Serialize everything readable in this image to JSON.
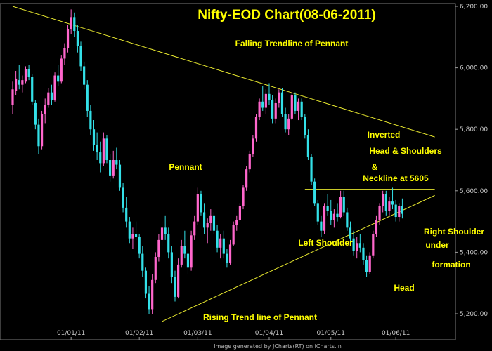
{
  "chart_data": {
    "type": "candlestick",
    "title": "Nifty-EOD Chart(08-06-2011)",
    "footer": "Image generated by JCharts(RT) on iCharts.in",
    "y_ticks": [
      "6,200.00",
      "6,000.00",
      "5,800.00",
      "5,600.00",
      "5,400.00",
      "5,200.00"
    ],
    "y_tick_values": [
      6200,
      6000,
      5800,
      5600,
      5400,
      5200
    ],
    "ylim": [
      5150,
      6200
    ],
    "x_ticks": [
      "01/01/11",
      "01/02/11",
      "01/03/11",
      "01/04/11",
      "01/05/11",
      "01/06/11"
    ],
    "x_tick_index": [
      18,
      39,
      57,
      79,
      98,
      118
    ],
    "colors": {
      "up": "#ff66cc",
      "down": "#33e0e8",
      "trendline": "#e6e62e",
      "annotation": "#ffff00"
    },
    "annotations": [
      "Falling Trendline of Pennant",
      "Pennant",
      "Inverted",
      "Head & Shoulders",
      "&",
      "Neckline at 5605",
      "Left Shoulder",
      "Right Shoulder",
      "under",
      "formation",
      "Head",
      "Rising Trend line of Pennant"
    ],
    "trendlines": [
      {
        "name": "Falling Trendline of Pennant",
        "from": {
          "i": 0,
          "v": 6200
        },
        "to": {
          "i": 130,
          "v": 5775
        }
      },
      {
        "name": "Rising Trend line of Pennant",
        "from": {
          "i": 46,
          "v": 5175
        },
        "to": {
          "i": 130,
          "v": 5585
        }
      },
      {
        "name": "Neckline at 5605",
        "from": {
          "i": 90,
          "v": 5605
        },
        "to": {
          "i": 130,
          "v": 5605
        }
      }
    ],
    "candles": [
      [
        5880,
        5955,
        5850,
        5930
      ],
      [
        5925,
        5990,
        5910,
        5965
      ],
      [
        5960,
        6010,
        5930,
        5945
      ],
      [
        5945,
        5975,
        5920,
        5960
      ],
      [
        5955,
        6005,
        5950,
        5995
      ],
      [
        5995,
        6010,
        5960,
        5970
      ],
      [
        5970,
        5980,
        5880,
        5890
      ],
      [
        5885,
        5895,
        5800,
        5815
      ],
      [
        5815,
        5835,
        5720,
        5745
      ],
      [
        5745,
        5860,
        5735,
        5850
      ],
      [
        5850,
        5900,
        5820,
        5880
      ],
      [
        5880,
        5935,
        5870,
        5920
      ],
      [
        5920,
        5945,
        5880,
        5895
      ],
      [
        5895,
        5985,
        5890,
        5975
      ],
      [
        5975,
        6010,
        5940,
        5955
      ],
      [
        5955,
        6040,
        5950,
        6030
      ],
      [
        6030,
        6080,
        6010,
        6065
      ],
      [
        6065,
        6140,
        6050,
        6125
      ],
      [
        6125,
        6190,
        6110,
        6165
      ],
      [
        6165,
        6180,
        6100,
        6120
      ],
      [
        6120,
        6140,
        6050,
        6070
      ],
      [
        6070,
        6085,
        5990,
        6005
      ],
      [
        6005,
        6020,
        5930,
        5945
      ],
      [
        5945,
        5960,
        5840,
        5860
      ],
      [
        5860,
        5880,
        5780,
        5800
      ],
      [
        5800,
        5830,
        5730,
        5750
      ],
      [
        5750,
        5790,
        5700,
        5725
      ],
      [
        5725,
        5760,
        5660,
        5690
      ],
      [
        5690,
        5790,
        5680,
        5770
      ],
      [
        5770,
        5780,
        5690,
        5700
      ],
      [
        5700,
        5720,
        5630,
        5650
      ],
      [
        5650,
        5730,
        5640,
        5700
      ],
      [
        5700,
        5740,
        5670,
        5685
      ],
      [
        5685,
        5700,
        5600,
        5610
      ],
      [
        5610,
        5625,
        5530,
        5545
      ],
      [
        5545,
        5580,
        5480,
        5500
      ],
      [
        5500,
        5515,
        5430,
        5445
      ],
      [
        5445,
        5480,
        5410,
        5460
      ],
      [
        5460,
        5500,
        5440,
        5450
      ],
      [
        5450,
        5460,
        5380,
        5395
      ],
      [
        5395,
        5420,
        5320,
        5340
      ],
      [
        5340,
        5350,
        5250,
        5265
      ],
      [
        5265,
        5290,
        5200,
        5215
      ],
      [
        5215,
        5330,
        5200,
        5310
      ],
      [
        5310,
        5400,
        5300,
        5385
      ],
      [
        5385,
        5460,
        5370,
        5440
      ],
      [
        5440,
        5500,
        5420,
        5480
      ],
      [
        5480,
        5520,
        5440,
        5460
      ],
      [
        5460,
        5480,
        5380,
        5400
      ],
      [
        5400,
        5420,
        5300,
        5320
      ],
      [
        5320,
        5340,
        5240,
        5255
      ],
      [
        5255,
        5380,
        5250,
        5360
      ],
      [
        5360,
        5440,
        5350,
        5420
      ],
      [
        5420,
        5470,
        5380,
        5395
      ],
      [
        5395,
        5410,
        5330,
        5350
      ],
      [
        5350,
        5470,
        5340,
        5455
      ],
      [
        5455,
        5520,
        5440,
        5500
      ],
      [
        5500,
        5610,
        5490,
        5590
      ],
      [
        5590,
        5600,
        5520,
        5530
      ],
      [
        5530,
        5560,
        5460,
        5480
      ],
      [
        5480,
        5510,
        5430,
        5495
      ],
      [
        5495,
        5540,
        5470,
        5520
      ],
      [
        5520,
        5530,
        5460,
        5470
      ],
      [
        5470,
        5490,
        5400,
        5415
      ],
      [
        5415,
        5460,
        5380,
        5445
      ],
      [
        5445,
        5470,
        5380,
        5395
      ],
      [
        5395,
        5410,
        5350,
        5365
      ],
      [
        5365,
        5440,
        5360,
        5425
      ],
      [
        5425,
        5500,
        5420,
        5490
      ],
      [
        5490,
        5520,
        5470,
        5505
      ],
      [
        5505,
        5560,
        5500,
        5550
      ],
      [
        5550,
        5620,
        5540,
        5610
      ],
      [
        5610,
        5680,
        5600,
        5670
      ],
      [
        5670,
        5730,
        5660,
        5720
      ],
      [
        5720,
        5780,
        5710,
        5770
      ],
      [
        5770,
        5850,
        5760,
        5840
      ],
      [
        5840,
        5900,
        5830,
        5890
      ],
      [
        5890,
        5940,
        5860,
        5870
      ],
      [
        5870,
        5930,
        5850,
        5915
      ],
      [
        5915,
        5950,
        5880,
        5895
      ],
      [
        5895,
        5910,
        5820,
        5835
      ],
      [
        5835,
        5900,
        5820,
        5885
      ],
      [
        5885,
        5930,
        5870,
        5920
      ],
      [
        5920,
        5935,
        5840,
        5850
      ],
      [
        5850,
        5870,
        5790,
        5800
      ],
      [
        5800,
        5850,
        5780,
        5835
      ],
      [
        5835,
        5920,
        5830,
        5910
      ],
      [
        5910,
        5920,
        5850,
        5860
      ],
      [
        5860,
        5900,
        5830,
        5890
      ],
      [
        5890,
        5900,
        5830,
        5840
      ],
      [
        5840,
        5850,
        5770,
        5780
      ],
      [
        5780,
        5800,
        5700,
        5710
      ],
      [
        5710,
        5720,
        5620,
        5630
      ],
      [
        5630,
        5640,
        5550,
        5560
      ],
      [
        5560,
        5570,
        5490,
        5500
      ],
      [
        5500,
        5520,
        5450,
        5470
      ],
      [
        5470,
        5560,
        5460,
        5550
      ],
      [
        5550,
        5590,
        5520,
        5535
      ],
      [
        5535,
        5570,
        5490,
        5505
      ],
      [
        5505,
        5540,
        5480,
        5525
      ],
      [
        5525,
        5560,
        5500,
        5515
      ],
      [
        5515,
        5600,
        5510,
        5580
      ],
      [
        5580,
        5600,
        5520,
        5530
      ],
      [
        5530,
        5545,
        5470,
        5480
      ],
      [
        5480,
        5500,
        5430,
        5445
      ],
      [
        5445,
        5470,
        5390,
        5405
      ],
      [
        5405,
        5450,
        5380,
        5430
      ],
      [
        5430,
        5460,
        5400,
        5415
      ],
      [
        5415,
        5430,
        5360,
        5375
      ],
      [
        5375,
        5390,
        5320,
        5335
      ],
      [
        5335,
        5400,
        5330,
        5390
      ],
      [
        5390,
        5470,
        5380,
        5460
      ],
      [
        5460,
        5520,
        5450,
        5505
      ],
      [
        5505,
        5560,
        5490,
        5550
      ],
      [
        5550,
        5600,
        5530,
        5590
      ],
      [
        5590,
        5600,
        5520,
        5535
      ],
      [
        5535,
        5580,
        5520,
        5565
      ],
      [
        5565,
        5610,
        5540,
        5555
      ],
      [
        5555,
        5570,
        5500,
        5515
      ],
      [
        5515,
        5560,
        5500,
        5550
      ],
      [
        5550,
        5575,
        5510,
        5525
      ]
    ]
  }
}
